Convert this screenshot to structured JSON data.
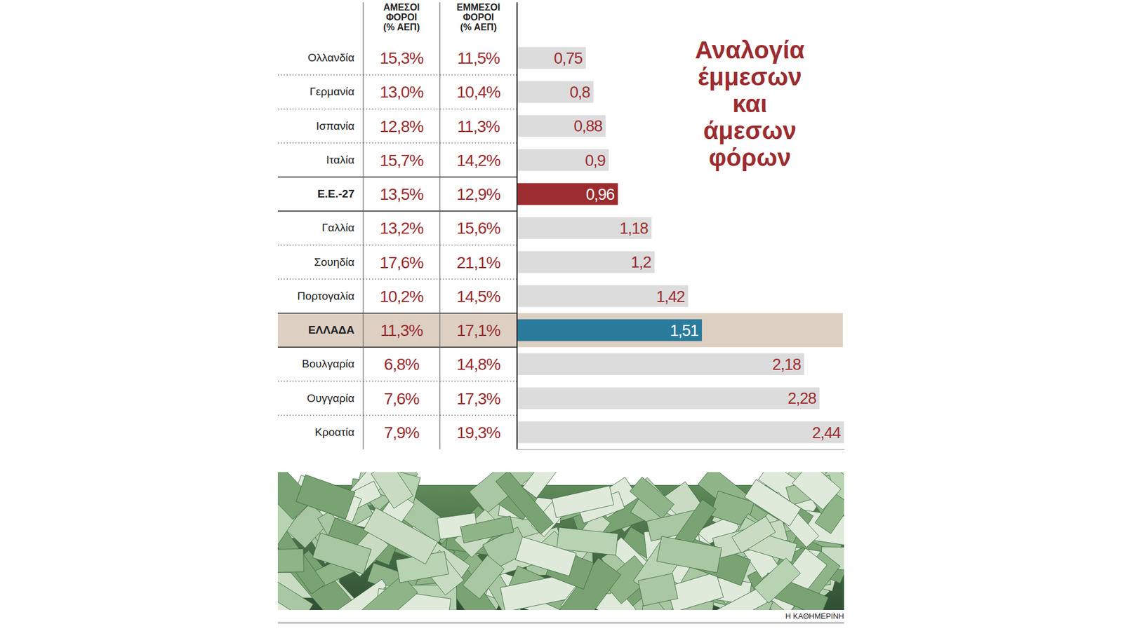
{
  "chart_data": {
    "type": "bar",
    "orientation": "horizontal",
    "title": "Αναλογία έμμεσων και άμεσων φόρων",
    "categories": [
      "Ολλανδία",
      "Γερμανία",
      "Ισπανία",
      "Ιταλία",
      "Ε.Ε.-27",
      "Γαλλία",
      "Σουηδία",
      "Πορτογαλία",
      "ΕΛΛΑΔΑ",
      "Βουλγαρία",
      "Ουγγαρία",
      "Κροατία"
    ],
    "values": [
      0.75,
      0.8,
      0.88,
      0.9,
      0.96,
      1.18,
      1.2,
      1.42,
      1.51,
      2.18,
      2.28,
      2.44
    ],
    "value_labels": [
      "0,75",
      "0,8",
      "0,88",
      "0,9",
      "0,96",
      "1,18",
      "1,2",
      "1,42",
      "1,51",
      "2,18",
      "2,28",
      "2,44"
    ],
    "colors": [
      "#dcdcdc",
      "#dcdcdc",
      "#dcdcdc",
      "#dcdcdc",
      "#9b2c2f",
      "#dcdcdc",
      "#dcdcdc",
      "#dcdcdc",
      "#2a7a9c",
      "#dcdcdc",
      "#dcdcdc",
      "#dcdcdc"
    ],
    "xlim": [
      0.3,
      2.44
    ],
    "xticks": [],
    "tick_labels": "y",
    "data_labels": true,
    "grid": false,
    "table_columns": [
      {
        "name": "ΑΜΕΣΟΙ ΦΟΡΟΙ (% ΑΕΠ)",
        "values": [
          15.3,
          13.0,
          12.8,
          15.7,
          13.5,
          13.2,
          17.6,
          10.2,
          11.3,
          6.8,
          7.6,
          7.9
        ],
        "value_labels": [
          "15,3%",
          "13,0%",
          "12,8%",
          "15,7%",
          "13,5%",
          "13,2%",
          "17,6%",
          "10,2%",
          "11,3%",
          "6,8%",
          "7,6%",
          "7,9%"
        ]
      },
      {
        "name": "ΕΜΜΕΣΟΙ ΦΟΡΟΙ (% ΑΕΠ)",
        "values": [
          11.5,
          10.4,
          11.3,
          14.2,
          12.9,
          15.6,
          21.1,
          14.5,
          17.1,
          14.8,
          17.3,
          19.3
        ],
        "value_labels": [
          "11,5%",
          "10,4%",
          "11,3%",
          "14,2%",
          "12,9%",
          "15,6%",
          "21,1%",
          "14,5%",
          "17,1%",
          "14,8%",
          "17,3%",
          "19,3%"
        ]
      }
    ],
    "source": "Η ΚΑΘΗΜΕΡΙΝΗ"
  }
}
